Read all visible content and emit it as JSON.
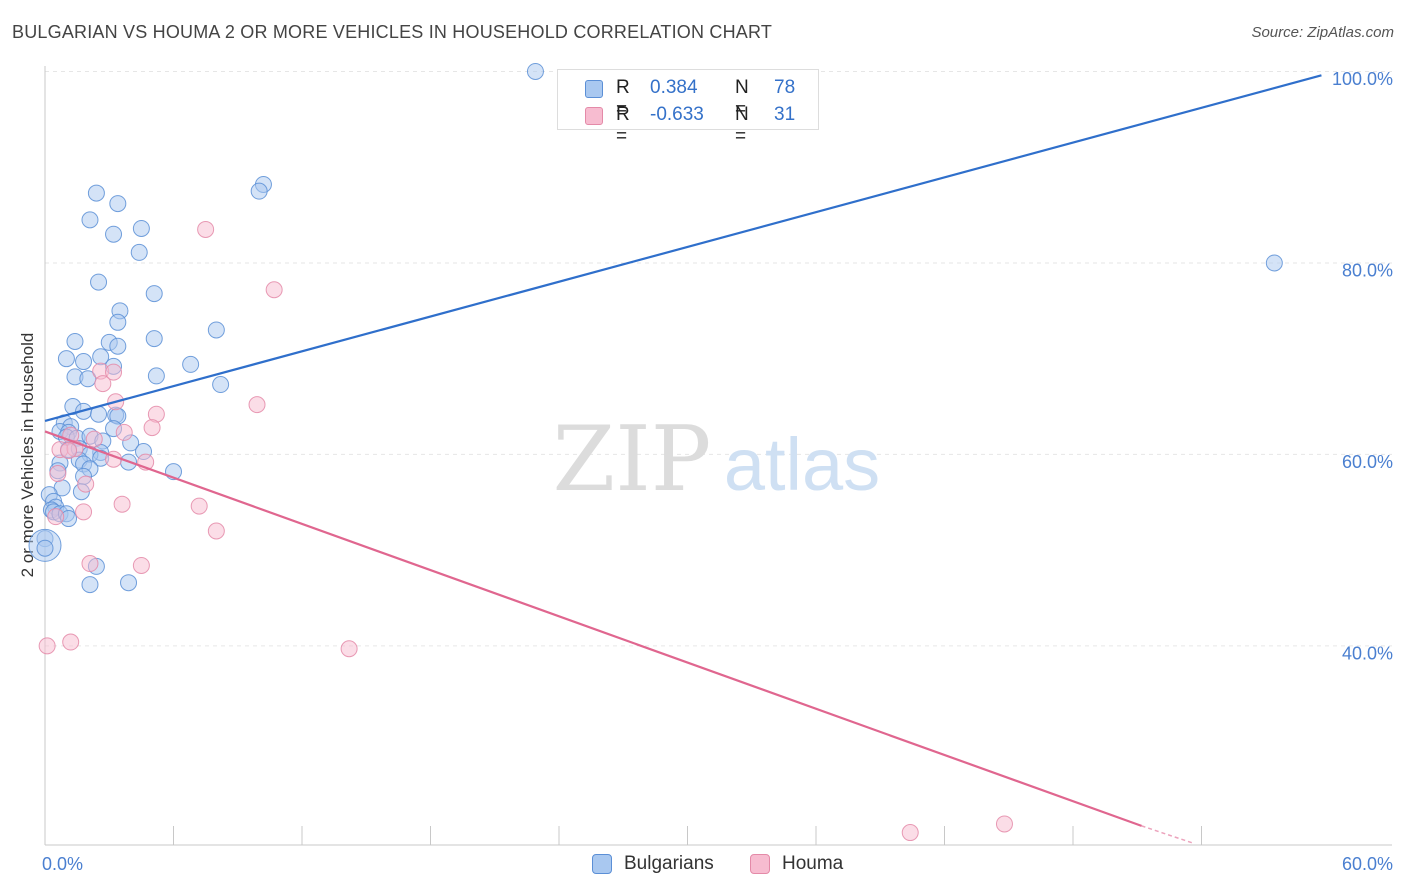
{
  "title": "BULGARIAN VS HOUMA 2 OR MORE VEHICLES IN HOUSEHOLD CORRELATION CHART",
  "source": "Source: ZipAtlas.com",
  "watermark": {
    "zip": "ZIP",
    "atlas": "atlas"
  },
  "stats": [
    {
      "r_label": "R =",
      "r_value": "0.384",
      "n_label": "N =",
      "n_value": "78"
    },
    {
      "r_label": "R =",
      "r_value": "-0.633",
      "n_label": "N =",
      "n_value": "31"
    }
  ],
  "legend": {
    "bulgarians": "Bulgarians",
    "houma": "Houma"
  },
  "colors": {
    "bulgarians_fill": "#a9c8f0",
    "bulgarians_stroke": "#5b8fd6",
    "bulgarians_line": "#2f6fcb",
    "houma_fill": "#f7bcd0",
    "houma_stroke": "#e48aa8",
    "houma_line": "#e0668f",
    "tick_text": "#4a7fd0",
    "grid": "#e6e6e6"
  },
  "chart_data": {
    "type": "scatter",
    "title": "BULGARIAN VS HOUMA 2 OR MORE VEHICLES IN HOUSEHOLD CORRELATION CHART",
    "xlabel": "",
    "ylabel": "2 or more Vehicles in Household",
    "xlim": [
      0,
      60
    ],
    "ylim": [
      20,
      102
    ],
    "x_tick_labels": [
      {
        "value": 0,
        "label": "0.0%"
      },
      {
        "value": 60,
        "label": "60.0%"
      }
    ],
    "y_tick_labels": [
      {
        "value": 100,
        "label": "100.0%"
      },
      {
        "value": 80,
        "label": "80.0%"
      },
      {
        "value": 60,
        "label": "60.0%"
      },
      {
        "value": 40,
        "label": "40.0%"
      }
    ],
    "y_gridlines": [
      100.8,
      80.8,
      60.8,
      40.8
    ],
    "x_minor_ticks": [
      6,
      12,
      18,
      24,
      30,
      36,
      42,
      48,
      54
    ],
    "series": [
      {
        "name": "Bulgarians",
        "r": 0.384,
        "n": 78,
        "trend": {
          "x": [
            0,
            59.6
          ],
          "y": [
            64.3,
            100.4
          ]
        },
        "points": [
          [
            22.9,
            100.8
          ],
          [
            57.4,
            80.8
          ],
          [
            10.2,
            89.0
          ],
          [
            2.4,
            88.1
          ],
          [
            10.0,
            88.3
          ],
          [
            2.1,
            85.3
          ],
          [
            3.4,
            87.0
          ],
          [
            4.5,
            84.4
          ],
          [
            3.2,
            83.8
          ],
          [
            4.4,
            81.9
          ],
          [
            2.5,
            78.8
          ],
          [
            5.1,
            77.6
          ],
          [
            3.5,
            75.8
          ],
          [
            3.4,
            74.6
          ],
          [
            8.0,
            73.8
          ],
          [
            5.1,
            72.9
          ],
          [
            1.4,
            72.6
          ],
          [
            3.0,
            72.5
          ],
          [
            3.4,
            72.1
          ],
          [
            1.0,
            70.8
          ],
          [
            2.6,
            71.0
          ],
          [
            1.8,
            70.5
          ],
          [
            3.2,
            70.0
          ],
          [
            6.8,
            70.2
          ],
          [
            1.4,
            68.9
          ],
          [
            5.2,
            69.0
          ],
          [
            2.0,
            68.7
          ],
          [
            8.2,
            68.1
          ],
          [
            1.3,
            65.8
          ],
          [
            1.8,
            65.3
          ],
          [
            2.5,
            65.0
          ],
          [
            3.3,
            64.9
          ],
          [
            3.4,
            64.8
          ],
          [
            0.9,
            64.1
          ],
          [
            1.2,
            63.7
          ],
          [
            0.7,
            63.2
          ],
          [
            3.2,
            63.5
          ],
          [
            1.1,
            63.1
          ],
          [
            1.0,
            62.6
          ],
          [
            1.5,
            62.5
          ],
          [
            2.1,
            62.7
          ],
          [
            2.7,
            62.2
          ],
          [
            4.0,
            62.0
          ],
          [
            1.1,
            61.3
          ],
          [
            1.6,
            61.4
          ],
          [
            2.6,
            61.0
          ],
          [
            2.1,
            60.8
          ],
          [
            4.6,
            61.1
          ],
          [
            2.6,
            60.4
          ],
          [
            1.6,
            60.2
          ],
          [
            3.9,
            60.0
          ],
          [
            0.7,
            59.9
          ],
          [
            1.8,
            59.8
          ],
          [
            2.1,
            59.3
          ],
          [
            0.6,
            59.1
          ],
          [
            6.0,
            59.0
          ],
          [
            1.8,
            58.5
          ],
          [
            0.8,
            57.3
          ],
          [
            1.7,
            56.9
          ],
          [
            0.2,
            56.6
          ],
          [
            0.4,
            55.9
          ],
          [
            0.5,
            55.3
          ],
          [
            0.3,
            55.0
          ],
          [
            0.4,
            54.8
          ],
          [
            0.7,
            54.6
          ],
          [
            1.0,
            54.6
          ],
          [
            1.1,
            54.1
          ],
          [
            0.0,
            52.0
          ],
          [
            0.0,
            51.3
          ],
          [
            0.0,
            51.0
          ],
          [
            2.4,
            49.1
          ],
          [
            2.1,
            47.2
          ],
          [
            3.9,
            47.4
          ]
        ],
        "sizes": {
          "0,52.0": 12,
          "0,51.3": 16
        }
      },
      {
        "name": "Houma",
        "r": -0.633,
        "n": 31,
        "trend": {
          "x": [
            0,
            51.2
          ],
          "y": [
            63.2,
            22.0
          ]
        },
        "trend_dashed": {
          "x": [
            51.2,
            53.6
          ],
          "y": [
            22.0,
            20.2
          ]
        },
        "points": [
          [
            7.5,
            84.3
          ],
          [
            10.7,
            78.0
          ],
          [
            2.6,
            69.5
          ],
          [
            3.2,
            69.4
          ],
          [
            2.7,
            68.2
          ],
          [
            3.3,
            66.3
          ],
          [
            9.9,
            66.0
          ],
          [
            5.2,
            65.0
          ],
          [
            5.0,
            63.6
          ],
          [
            3.7,
            63.1
          ],
          [
            1.2,
            62.8
          ],
          [
            2.3,
            62.4
          ],
          [
            0.7,
            61.3
          ],
          [
            1.4,
            61.4
          ],
          [
            1.1,
            61.2
          ],
          [
            3.2,
            60.3
          ],
          [
            4.7,
            60.0
          ],
          [
            0.6,
            58.8
          ],
          [
            1.9,
            57.7
          ],
          [
            3.6,
            55.6
          ],
          [
            7.2,
            55.4
          ],
          [
            1.8,
            54.8
          ],
          [
            0.5,
            54.3
          ],
          [
            8.0,
            52.8
          ],
          [
            2.1,
            49.4
          ],
          [
            4.5,
            49.2
          ],
          [
            1.2,
            41.2
          ],
          [
            0.1,
            40.8
          ],
          [
            14.2,
            40.5
          ],
          [
            40.4,
            21.3
          ],
          [
            44.8,
            22.2
          ]
        ]
      }
    ]
  }
}
